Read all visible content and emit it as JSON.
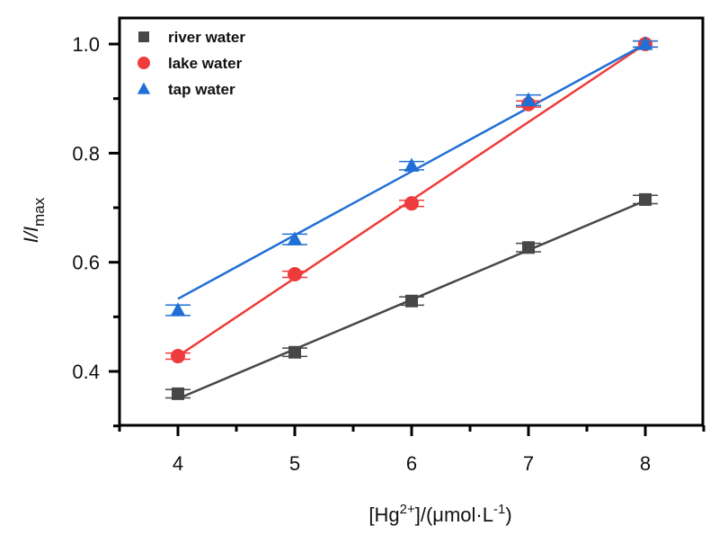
{
  "chart_data": {
    "type": "scatter",
    "title": "",
    "xlabel": "[Hg2+]/(μmol·L-1)",
    "xlabel_parts": {
      "pre": "[Hg",
      "sup1": "2+",
      "mid": "]/(μmol·L",
      "sup2": "-1",
      "post": ")"
    },
    "ylabel": "I/Imax",
    "ylabel_parts": {
      "main": "I/I",
      "sub": "max"
    },
    "xlim": [
      3.5,
      8.5
    ],
    "ylim": [
      0.3,
      1.05
    ],
    "x_ticks": [
      4,
      5,
      6,
      7,
      8
    ],
    "x_tick_labels": [
      "4",
      "5",
      "6",
      "7",
      "8"
    ],
    "x_minor_ticks": [
      3.5,
      4.5,
      5.5,
      6.5,
      7.5,
      8.5
    ],
    "y_ticks": [
      0.4,
      0.6,
      0.8,
      1.0
    ],
    "y_tick_labels": [
      "0.4",
      "0.6",
      "0.8",
      "1.0"
    ],
    "y_minor_ticks": [
      0.3,
      0.5,
      0.7,
      0.9
    ],
    "grid": false,
    "legend_position": "top-left",
    "x": [
      4,
      5,
      6,
      7,
      8
    ],
    "series": [
      {
        "name": "river water",
        "marker": "square",
        "color": "#474747",
        "values": [
          0.359,
          0.435,
          0.529,
          0.627,
          0.715
        ],
        "error": [
          0.006,
          0.006,
          0.006,
          0.006,
          0.006
        ],
        "fit": [
          0.35,
          0.713
        ]
      },
      {
        "name": "lake water",
        "marker": "circle",
        "color": "#ef3b3b",
        "values": [
          0.428,
          0.578,
          0.708,
          0.89,
          1.0
        ],
        "error": [
          0.004,
          0.004,
          0.004,
          0.004,
          0.004
        ],
        "fit": [
          0.428,
          1.0
        ]
      },
      {
        "name": "tap water",
        "marker": "triangle",
        "color": "#1f6fd6",
        "values": [
          0.512,
          0.642,
          0.777,
          0.897,
          1.0
        ],
        "error": [
          0.008,
          0.008,
          0.006,
          0.008,
          0.004
        ],
        "fit": [
          0.533,
          1.0
        ]
      }
    ]
  }
}
